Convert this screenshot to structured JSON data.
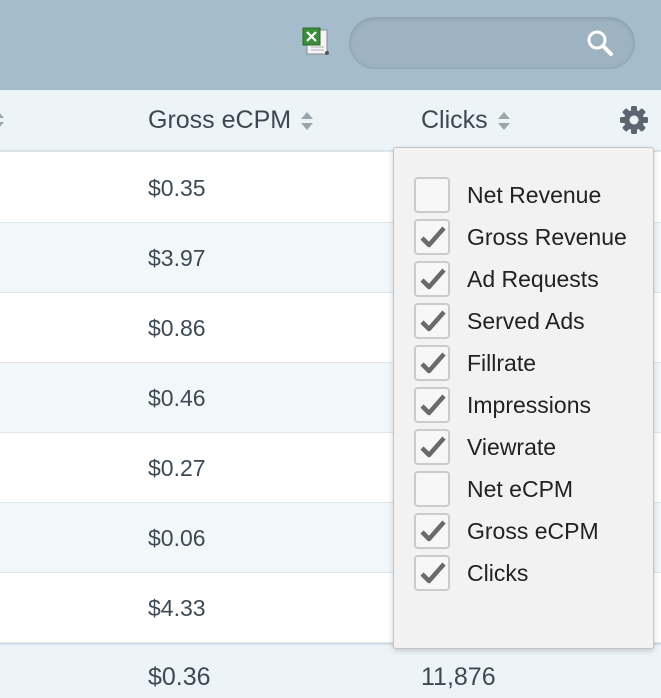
{
  "toolbar": {
    "excel_icon": "excel-export-icon",
    "search": {
      "placeholder": "",
      "value": "",
      "icon": "search-icon"
    }
  },
  "table": {
    "columns": [
      {
        "label": "Gross eCPM",
        "sortable": true
      },
      {
        "label": "Clicks",
        "sortable": true
      }
    ],
    "rows": [
      {
        "gross_ecpm": "$0.35"
      },
      {
        "gross_ecpm": "$3.97"
      },
      {
        "gross_ecpm": "$0.86"
      },
      {
        "gross_ecpm": "$0.46"
      },
      {
        "gross_ecpm": "$0.27"
      },
      {
        "gross_ecpm": "$0.06"
      },
      {
        "gross_ecpm": "$4.33"
      }
    ],
    "totals": {
      "gross_ecpm": "$0.36",
      "clicks": "11,876"
    }
  },
  "column_menu": {
    "icon": "gear-icon",
    "options": [
      {
        "label": "Net Revenue",
        "checked": false
      },
      {
        "label": "Gross Revenue",
        "checked": true
      },
      {
        "label": "Ad Requests",
        "checked": true
      },
      {
        "label": "Served Ads",
        "checked": true
      },
      {
        "label": "Fillrate",
        "checked": true
      },
      {
        "label": "Impressions",
        "checked": true
      },
      {
        "label": "Viewrate",
        "checked": true
      },
      {
        "label": "Net eCPM",
        "checked": false
      },
      {
        "label": "Gross eCPM",
        "checked": true
      },
      {
        "label": "Clicks",
        "checked": true
      }
    ]
  },
  "colors": {
    "topbar": "#a4bccb",
    "header": "#edf4f8",
    "row_alt": "#f2f7fa",
    "checkmark": "#6a6a6a"
  }
}
